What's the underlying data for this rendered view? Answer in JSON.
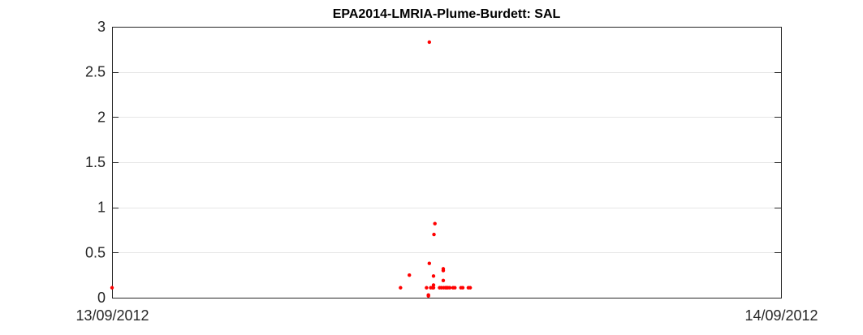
{
  "chart_data": {
    "type": "scatter",
    "title": "EPA2014-LMRIA-Plume-Burdett: SAL",
    "xlabel": "",
    "ylabel": "",
    "x_tick_labels": [
      "13/09/2012",
      "14/09/2012"
    ],
    "y_tick_labels": [
      "0",
      "0.5",
      "1",
      "1.5",
      "2",
      "2.5",
      "3"
    ],
    "xlim": [
      "13/09/2012 00:00",
      "14/09/2012 00:00"
    ],
    "ylim": [
      0,
      3
    ],
    "grid": "horizontal",
    "legend": "none",
    "marker_color": "#ff0000",
    "series": [
      {
        "points": [
          {
            "x": "13/09/2012 00:00",
            "y": 0.11
          },
          {
            "x": "13/09/2012 10:21",
            "y": 0.11
          },
          {
            "x": "13/09/2012 10:40",
            "y": 0.25
          },
          {
            "x": "13/09/2012 11:17",
            "y": 0.11
          },
          {
            "x": "13/09/2012 11:21",
            "y": 0.03
          },
          {
            "x": "13/09/2012 11:21",
            "y": 0.02
          },
          {
            "x": "13/09/2012 11:23",
            "y": 2.83
          },
          {
            "x": "13/09/2012 11:23",
            "y": 0.38
          },
          {
            "x": "13/09/2012 11:26",
            "y": 0.11
          },
          {
            "x": "13/09/2012 11:30",
            "y": 0.11
          },
          {
            "x": "13/09/2012 11:32",
            "y": 0.24
          },
          {
            "x": "13/09/2012 11:32",
            "y": 0.14
          },
          {
            "x": "13/09/2012 11:32",
            "y": 0.11
          },
          {
            "x": "13/09/2012 11:33",
            "y": 0.7
          },
          {
            "x": "13/09/2012 11:35",
            "y": 0.82
          },
          {
            "x": "13/09/2012 11:45",
            "y": 0.11
          },
          {
            "x": "13/09/2012 11:49",
            "y": 0.11
          },
          {
            "x": "13/09/2012 11:53",
            "y": 0.32
          },
          {
            "x": "13/09/2012 11:53",
            "y": 0.3
          },
          {
            "x": "13/09/2012 11:53",
            "y": 0.19
          },
          {
            "x": "13/09/2012 11:54",
            "y": 0.11
          },
          {
            "x": "13/09/2012 11:58",
            "y": 0.11
          },
          {
            "x": "13/09/2012 12:00",
            "y": 0.11
          },
          {
            "x": "13/09/2012 12:03",
            "y": 0.11
          },
          {
            "x": "13/09/2012 12:07",
            "y": 0.11
          },
          {
            "x": "13/09/2012 12:14",
            "y": 0.11
          },
          {
            "x": "13/09/2012 12:18",
            "y": 0.11
          },
          {
            "x": "13/09/2012 12:31",
            "y": 0.11
          },
          {
            "x": "13/09/2012 12:35",
            "y": 0.11
          },
          {
            "x": "13/09/2012 12:47",
            "y": 0.11
          },
          {
            "x": "13/09/2012 12:51",
            "y": 0.11
          }
        ]
      }
    ]
  }
}
